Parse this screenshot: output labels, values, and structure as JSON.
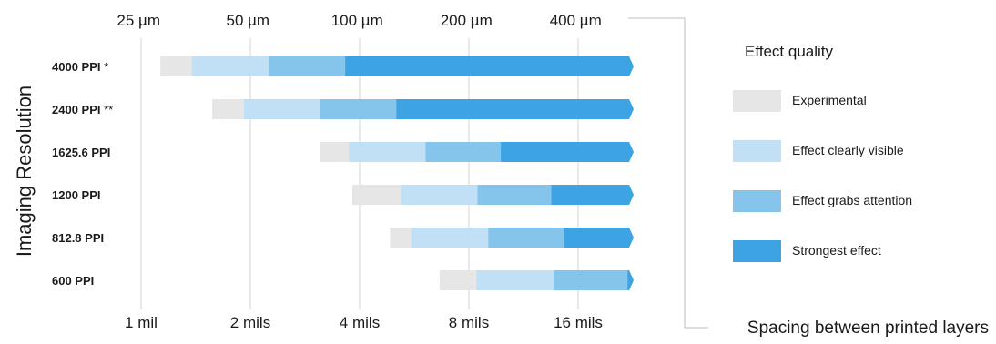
{
  "chart_data": {
    "type": "bar",
    "ylabel": "Imaging Resolution",
    "xlabel": "Spacing between printed layers",
    "x_scale": "log2",
    "xlim_mils": [
      0.88,
      22.5
    ],
    "top_ticks": [
      {
        "label": "25 µm",
        "mils": 0.984
      },
      {
        "label": "50 µm",
        "mils": 1.969
      },
      {
        "label": "100 µm",
        "mils": 3.937
      },
      {
        "label": "200 µm",
        "mils": 7.874
      },
      {
        "label": "400 µm",
        "mils": 15.748
      }
    ],
    "bottom_ticks": [
      {
        "label": "1 mil",
        "mils": 1
      },
      {
        "label": "2 mils",
        "mils": 2
      },
      {
        "label": "4 mils",
        "mils": 4
      },
      {
        "label": "8 mils",
        "mils": 8
      },
      {
        "label": "16 mils",
        "mils": 16
      }
    ],
    "legend": {
      "title": "Effect quality",
      "items": [
        {
          "label": "Experimental",
          "color": "#e6e6e6"
        },
        {
          "label": "Effect clearly visible",
          "color": "#c2e0f5"
        },
        {
          "label": "Effect grabs attention",
          "color": "#85c5ec"
        },
        {
          "label": "Strongest effect",
          "color": "#3da3e3"
        }
      ]
    },
    "rows": [
      {
        "label": "4000 PPI",
        "note": "*",
        "segments_mils": [
          1.13,
          1.38,
          2.25,
          3.65,
          22.5
        ]
      },
      {
        "label": "2400 PPI",
        "note": "**",
        "segments_mils": [
          1.57,
          1.92,
          3.12,
          5.05,
          22.5
        ]
      },
      {
        "label": "1625.6 PPI",
        "note": "",
        "segments_mils": [
          3.12,
          3.74,
          6.08,
          9.8,
          22.5
        ]
      },
      {
        "label": "1200 PPI",
        "note": "",
        "segments_mils": [
          3.82,
          5.2,
          8.45,
          13.5,
          22.5
        ]
      },
      {
        "label": "812.8 PPI",
        "note": "",
        "segments_mils": [
          4.85,
          5.55,
          9.05,
          14.6,
          22.5
        ]
      },
      {
        "label": "600 PPI",
        "note": "",
        "segments_mils": [
          6.65,
          8.4,
          13.7,
          21.9,
          22.5
        ]
      }
    ]
  }
}
